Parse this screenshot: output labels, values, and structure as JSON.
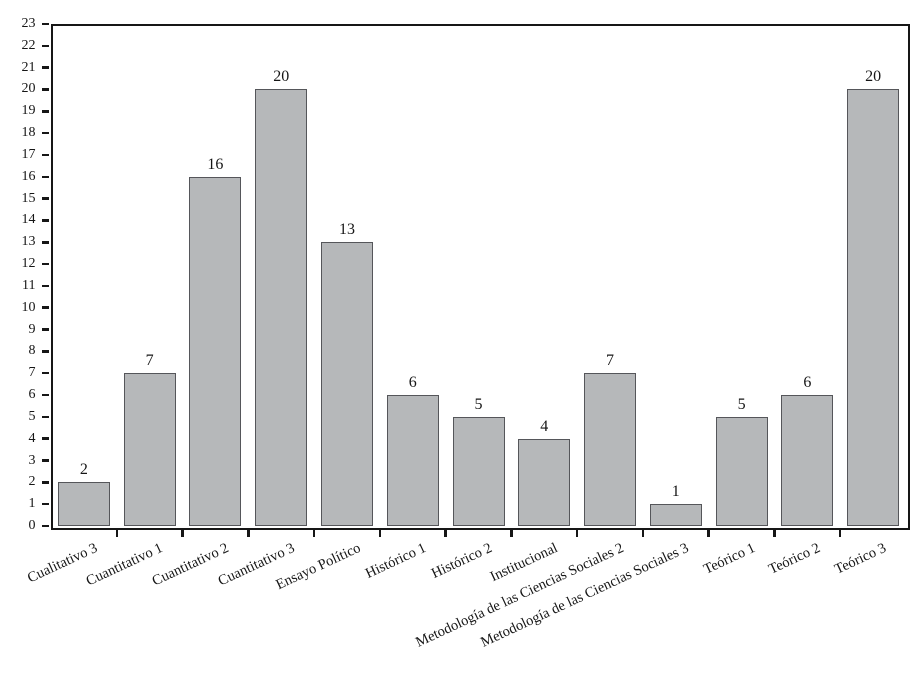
{
  "chart_data": {
    "type": "bar",
    "title": "",
    "xlabel": "",
    "ylabel": "",
    "categories": [
      "Cualitativo 3",
      "Cuantitativo 1",
      "Cuantitativo 2",
      "Cuantitativo 3",
      "Ensayo Político",
      "Histórico 1",
      "Histórico 2",
      "Institucional",
      "Metodología de las Ciencias Sociales 2",
      "Metodología de las Ciencias Sociales 3",
      "Teórico 1",
      "Teórico 2",
      "Teórico 3"
    ],
    "values": [
      2,
      7,
      16,
      20,
      13,
      6,
      5,
      4,
      7,
      1,
      5,
      6,
      20
    ],
    "value_labels": [
      "2",
      "7",
      "16",
      "20",
      "13",
      "6",
      "5",
      "4",
      "7",
      "1",
      "5",
      "6",
      "20"
    ],
    "ylim": [
      0,
      23
    ],
    "ytick_interval": 1,
    "ytick_labels": [
      "0",
      "1",
      "2",
      "3",
      "4",
      "5",
      "6",
      "7",
      "8",
      "9",
      "10",
      "11",
      "12",
      "13",
      "14",
      "15",
      "16",
      "17",
      "18",
      "19",
      "20",
      "21",
      "22",
      "23"
    ],
    "grid": false,
    "legend": null,
    "frame": "box",
    "x_label_rotation_deg": -25,
    "colors": {
      "bar_fill": "#b6b8ba",
      "bar_border": "#55565a",
      "axis": "#161616",
      "text": "#161616",
      "background": "#ffffff"
    }
  }
}
